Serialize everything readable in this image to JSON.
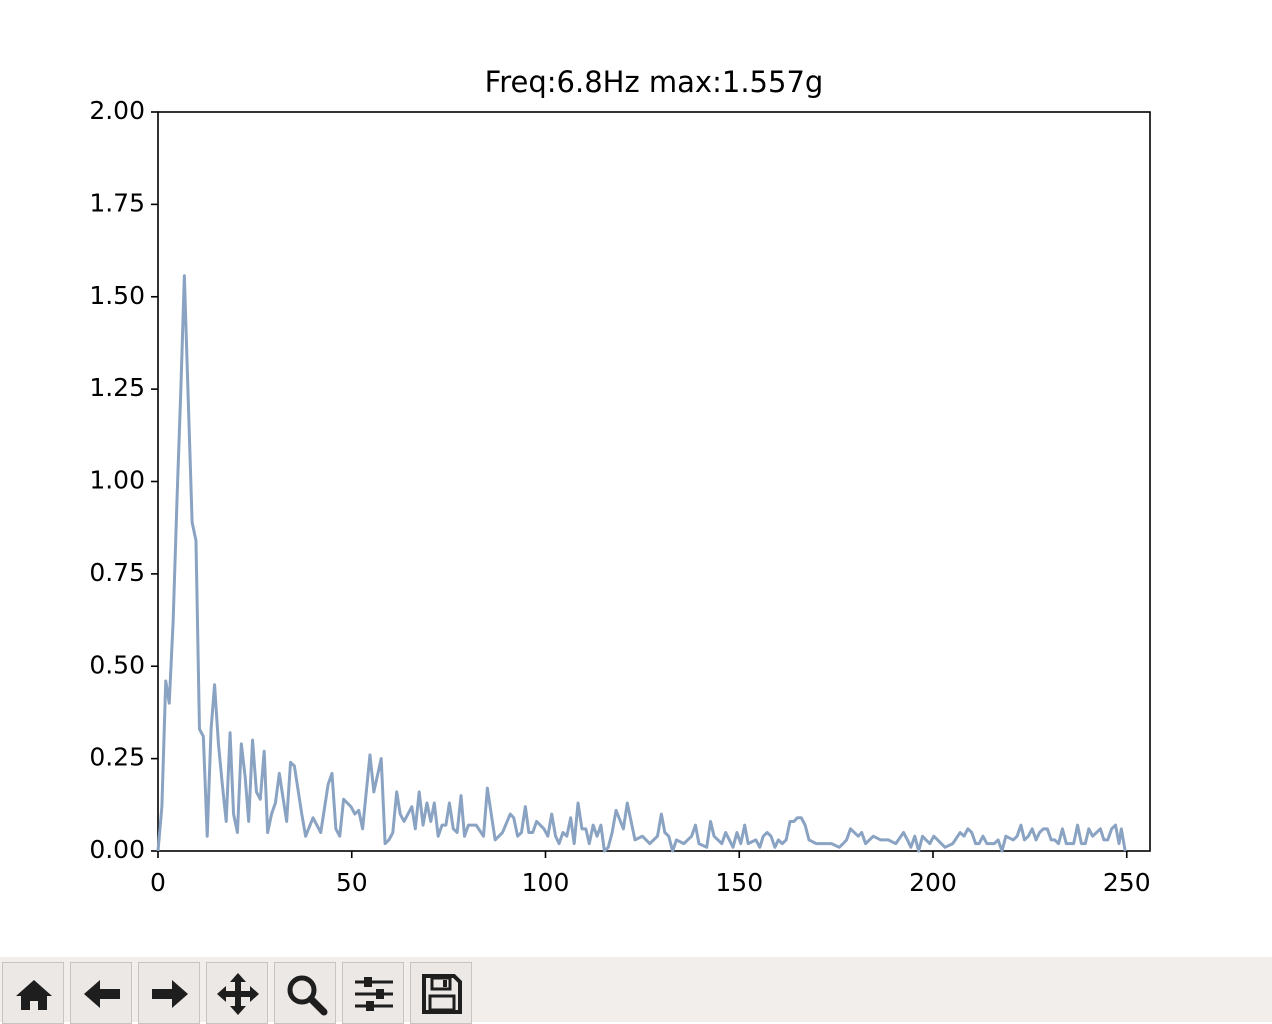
{
  "chart_data": {
    "type": "line",
    "title": "Freq:6.8Hz max:1.557g",
    "color": "#8aa3c2",
    "x": [
      0,
      1.0,
      2.0,
      2.9,
      3.9,
      4.9,
      5.9,
      6.8,
      8.8,
      9.8,
      10.7,
      11.7,
      12.7,
      13.7,
      14.6,
      15.6,
      16.6,
      17.6,
      18.6,
      19.5,
      20.5,
      21.5,
      22.5,
      23.4,
      24.4,
      25.4,
      26.4,
      27.4,
      28.3,
      29.3,
      30.3,
      31.3,
      33.2,
      34.2,
      35.2,
      37.1,
      38.1,
      40.0,
      42.0,
      43.9,
      44.9,
      45.9,
      46.9,
      47.9,
      49.8,
      50.8,
      51.8,
      52.8,
      54.7,
      55.7,
      57.6,
      58.6,
      59.6,
      60.6,
      61.6,
      62.5,
      63.5,
      65.5,
      66.4,
      67.4,
      68.4,
      69.4,
      70.4,
      71.3,
      72.3,
      73.3,
      74.3,
      75.2,
      76.2,
      77.2,
      78.2,
      79.1,
      80.1,
      82.1,
      84.0,
      85.0,
      86.0,
      87.0,
      88.9,
      90.9,
      91.8,
      92.8,
      93.8,
      94.8,
      95.7,
      96.7,
      97.7,
      99.6,
      100.6,
      101.6,
      102.6,
      103.5,
      104.5,
      105.5,
      106.5,
      107.4,
      108.4,
      109.4,
      110.4,
      111.3,
      112.3,
      113.3,
      114.3,
      115.2,
      116.2,
      117.2,
      118.2,
      120.1,
      121.1,
      122.1,
      123.1,
      125.0,
      126.9,
      128.9,
      129.9,
      130.8,
      131.8,
      132.8,
      133.8,
      135.7,
      136.7,
      137.7,
      138.7,
      139.6,
      141.6,
      142.6,
      143.5,
      145.5,
      146.5,
      148.4,
      149.4,
      150.4,
      151.4,
      152.3,
      154.3,
      155.3,
      156.2,
      157.2,
      158.2,
      159.2,
      160.1,
      161.1,
      162.1,
      163.1,
      164.1,
      165.0,
      166.0,
      167.0,
      168.0,
      169.9,
      171.9,
      173.8,
      175.8,
      176.8,
      177.7,
      178.7,
      180.7,
      181.6,
      182.6,
      184.6,
      186.5,
      188.5,
      190.4,
      192.4,
      193.4,
      194.3,
      195.3,
      196.3,
      197.3,
      198.2,
      199.2,
      200.2,
      201.2,
      203.1,
      205.1,
      207.0,
      208.0,
      209.0,
      210.0,
      211.0,
      211.9,
      212.9,
      213.9,
      215.8,
      216.8,
      217.8,
      218.8,
      220.7,
      221.7,
      222.7,
      223.6,
      224.6,
      225.6,
      226.6,
      227.5,
      228.5,
      229.5,
      230.5,
      231.4,
      232.4,
      233.4,
      234.4,
      235.4,
      236.3,
      237.3,
      238.3,
      239.3,
      240.2,
      241.2,
      242.2,
      243.2,
      244.1,
      245.1,
      246.1,
      247.1,
      248.0,
      248.6,
      249.6
    ],
    "values": [
      0.0,
      0.12,
      0.46,
      0.4,
      0.62,
      0.95,
      1.25,
      1.557,
      0.89,
      0.84,
      0.33,
      0.31,
      0.04,
      0.33,
      0.45,
      0.29,
      0.18,
      0.08,
      0.32,
      0.1,
      0.05,
      0.29,
      0.2,
      0.08,
      0.3,
      0.16,
      0.14,
      0.27,
      0.05,
      0.1,
      0.13,
      0.21,
      0.08,
      0.24,
      0.23,
      0.1,
      0.04,
      0.09,
      0.05,
      0.18,
      0.21,
      0.06,
      0.04,
      0.14,
      0.12,
      0.1,
      0.11,
      0.06,
      0.26,
      0.16,
      0.25,
      0.02,
      0.03,
      0.05,
      0.16,
      0.1,
      0.08,
      0.12,
      0.06,
      0.16,
      0.07,
      0.13,
      0.08,
      0.13,
      0.04,
      0.07,
      0.07,
      0.13,
      0.06,
      0.05,
      0.15,
      0.04,
      0.07,
      0.07,
      0.04,
      0.17,
      0.1,
      0.03,
      0.05,
      0.1,
      0.09,
      0.04,
      0.05,
      0.12,
      0.05,
      0.05,
      0.08,
      0.06,
      0.04,
      0.1,
      0.04,
      0.02,
      0.05,
      0.04,
      0.09,
      0.02,
      0.13,
      0.06,
      0.06,
      0.02,
      0.07,
      0.04,
      0.07,
      0.0,
      0.01,
      0.05,
      0.11,
      0.06,
      0.13,
      0.08,
      0.03,
      0.04,
      0.02,
      0.04,
      0.1,
      0.05,
      0.04,
      0.0,
      0.03,
      0.02,
      0.03,
      0.04,
      0.07,
      0.02,
      0.01,
      0.08,
      0.04,
      0.02,
      0.05,
      0.01,
      0.05,
      0.02,
      0.07,
      0.02,
      0.03,
      0.01,
      0.04,
      0.05,
      0.04,
      0.01,
      0.03,
      0.02,
      0.03,
      0.08,
      0.08,
      0.09,
      0.09,
      0.07,
      0.03,
      0.02,
      0.02,
      0.02,
      0.01,
      0.02,
      0.03,
      0.06,
      0.04,
      0.05,
      0.02,
      0.04,
      0.03,
      0.03,
      0.02,
      0.05,
      0.03,
      0.01,
      0.04,
      0.0,
      0.04,
      0.03,
      0.02,
      0.04,
      0.03,
      0.01,
      0.02,
      0.05,
      0.04,
      0.06,
      0.05,
      0.02,
      0.02,
      0.04,
      0.02,
      0.02,
      0.03,
      0.0,
      0.04,
      0.03,
      0.04,
      0.07,
      0.03,
      0.04,
      0.06,
      0.03,
      0.05,
      0.06,
      0.06,
      0.03,
      0.03,
      0.02,
      0.06,
      0.02,
      0.02,
      0.02,
      0.07,
      0.02,
      0.02,
      0.06,
      0.04,
      0.05,
      0.06,
      0.03,
      0.03,
      0.06,
      0.07,
      0.02,
      0.06,
      0.0
    ],
    "xlim": [
      0,
      256
    ],
    "ylim": [
      0,
      2
    ],
    "xticks": [
      0,
      50,
      100,
      150,
      200,
      250
    ],
    "yticks": [
      {
        "value": 0,
        "label": "0.00"
      },
      {
        "value": 0.25,
        "label": "0.25"
      },
      {
        "value": 0.5,
        "label": "0.50"
      },
      {
        "value": 0.75,
        "label": "0.75"
      },
      {
        "value": 1,
        "label": "1.00"
      },
      {
        "value": 1.25,
        "label": "1.25"
      },
      {
        "value": 1.5,
        "label": "1.50"
      },
      {
        "value": 1.75,
        "label": "1.75"
      },
      {
        "value": 2,
        "label": "2.00"
      }
    ],
    "grid": false
  }
}
